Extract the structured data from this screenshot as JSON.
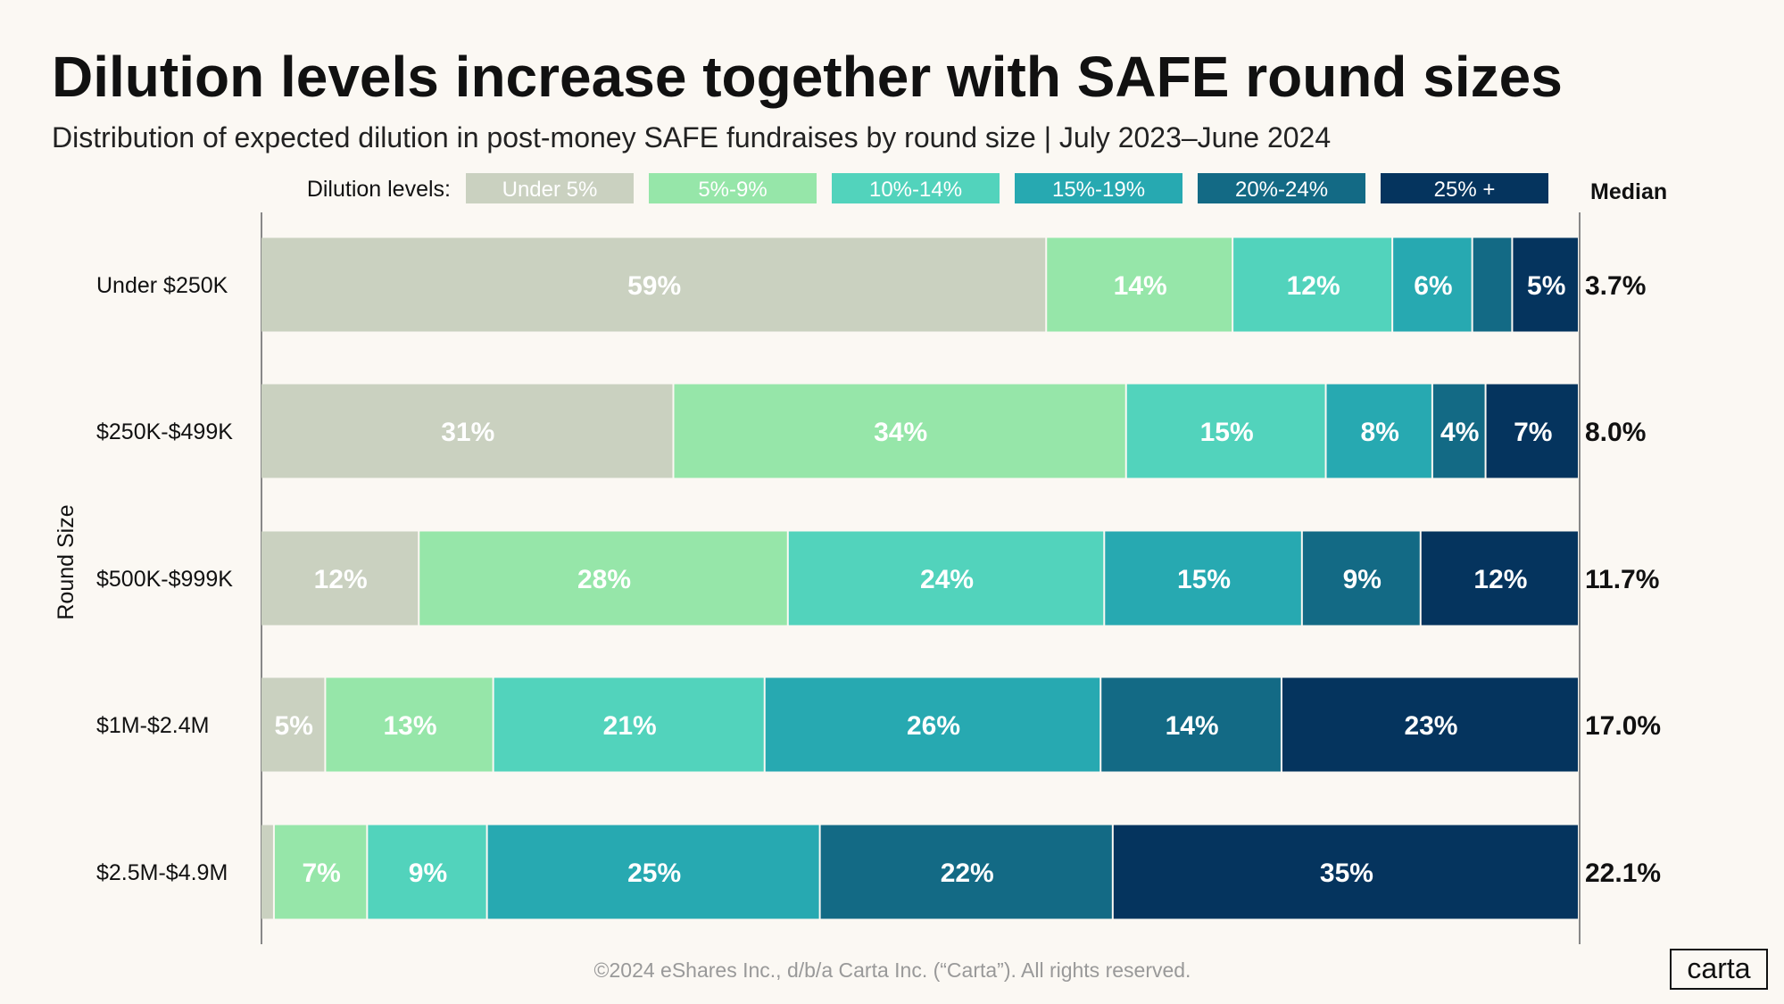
{
  "chart_data": {
    "type": "bar",
    "orientation": "horizontal",
    "stacked": true,
    "title": "Dilution levels increase together with SAFE round sizes",
    "subtitle": "Distribution of expected dilution in post-money SAFE fundraises by round size | July 2023–June 2024",
    "ylabel": "Round Size",
    "legend_label": "Dilution levels:",
    "legend_placement": "top",
    "median_header": "Median",
    "categories": [
      "Under $250K",
      "$250K-$499K",
      "$500K-$999K",
      "$1M-$2.4M",
      "$2.5M-$4.9M"
    ],
    "series": [
      {
        "name": "Under 5%",
        "color": "#cad1c0",
        "values": [
          59,
          31,
          12,
          5,
          1
        ],
        "labels": [
          "59%",
          "31%",
          "12%",
          "5%",
          ""
        ]
      },
      {
        "name": "5%-9%",
        "color": "#96e6a9",
        "values": [
          14,
          34,
          28,
          13,
          7
        ],
        "labels": [
          "14%",
          "34%",
          "28%",
          "13%",
          "7%"
        ]
      },
      {
        "name": "10%-14%",
        "color": "#52d3bc",
        "values": [
          12,
          15,
          24,
          21,
          9
        ],
        "labels": [
          "12%",
          "15%",
          "24%",
          "21%",
          "9%"
        ]
      },
      {
        "name": "15%-19%",
        "color": "#27a9b1",
        "values": [
          6,
          8,
          15,
          26,
          25
        ],
        "labels": [
          "6%",
          "8%",
          "15%",
          "26%",
          "25%"
        ]
      },
      {
        "name": "20%-24%",
        "color": "#136a85",
        "values": [
          3,
          4,
          9,
          14,
          22
        ],
        "labels": [
          "",
          "4%",
          "9%",
          "14%",
          "22%"
        ]
      },
      {
        "name": "25% +",
        "color": "#05345e",
        "values": [
          5,
          7,
          12,
          23,
          35
        ],
        "labels": [
          "5%",
          "7%",
          "12%",
          "23%",
          "35%"
        ]
      }
    ],
    "medians": [
      "3.7%",
      "8.0%",
      "11.7%",
      "17.0%",
      "22.1%"
    ],
    "xlim": [
      0,
      100
    ],
    "grid": false
  },
  "footer": "©2024 eShares Inc., d/b/a Carta Inc. (“Carta”). All rights reserved.",
  "logo": "carta",
  "colors": {
    "background": "#fbf8f3"
  }
}
